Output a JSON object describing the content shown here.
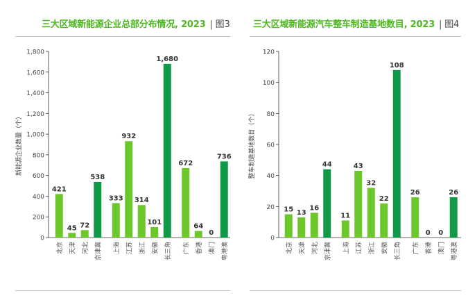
{
  "charts": [
    {
      "title": "三大区域新能源企业总部分布情况, 2023",
      "figure_label": "图3",
      "ylabel": "新能源企业数量（个）",
      "colors": {
        "light": "#6cc72b",
        "dark": "#109a48"
      },
      "chart_data": {
        "type": "bar",
        "title": "三大区域新能源企业总部分布情况, 2023",
        "ylabel": "新能源企业数量（个）",
        "ylim": [
          0,
          1800
        ],
        "yticks": [
          "0",
          "200",
          "400",
          "600",
          "800",
          "1,000",
          "1,200",
          "1,400",
          "1,600",
          "1,800"
        ],
        "ytick_values": [
          0,
          200,
          400,
          600,
          800,
          1000,
          1200,
          1400,
          1600,
          1800
        ],
        "groups": [
          {
            "categories": [
              "北京",
              "天津",
              "河北",
              "京津冀"
            ],
            "values": [
              421,
              45,
              72,
              538
            ],
            "total_index": 3
          },
          {
            "categories": [
              "上海",
              "江苏",
              "浙江",
              "安徽",
              "长三角"
            ],
            "values": [
              333,
              932,
              314,
              101,
              1680
            ],
            "total_index": 4
          },
          {
            "categories": [
              "广东",
              "香港",
              "澳门",
              "粤港澳"
            ],
            "values": [
              672,
              64,
              0,
              736
            ],
            "total_index": 3
          }
        ]
      }
    },
    {
      "title": "三大区域新能源汽车整车制造基地数目, 2023",
      "figure_label": "图4",
      "ylabel": "整车制造基地数目（个）",
      "colors": {
        "light": "#6cc72b",
        "dark": "#109a48"
      },
      "chart_data": {
        "type": "bar",
        "title": "三大区域新能源汽车整车制造基地数目, 2023",
        "ylabel": "整车制造基地数目（个）",
        "ylim": [
          0,
          120
        ],
        "yticks": [
          "0",
          "20",
          "40",
          "60",
          "80",
          "100",
          "120"
        ],
        "ytick_values": [
          0,
          20,
          40,
          60,
          80,
          100,
          120
        ],
        "groups": [
          {
            "categories": [
              "北京",
              "天津",
              "河北",
              "京津冀"
            ],
            "values": [
              15,
              13,
              16,
              44
            ],
            "total_index": 3
          },
          {
            "categories": [
              "上海",
              "江苏",
              "浙江",
              "安徽",
              "长三角"
            ],
            "values": [
              11,
              43,
              32,
              22,
              108
            ],
            "total_index": 4
          },
          {
            "categories": [
              "广东",
              "香港",
              "澳门",
              "粤港澳"
            ],
            "values": [
              26,
              0,
              0,
              26
            ],
            "total_index": 3
          }
        ]
      }
    }
  ]
}
